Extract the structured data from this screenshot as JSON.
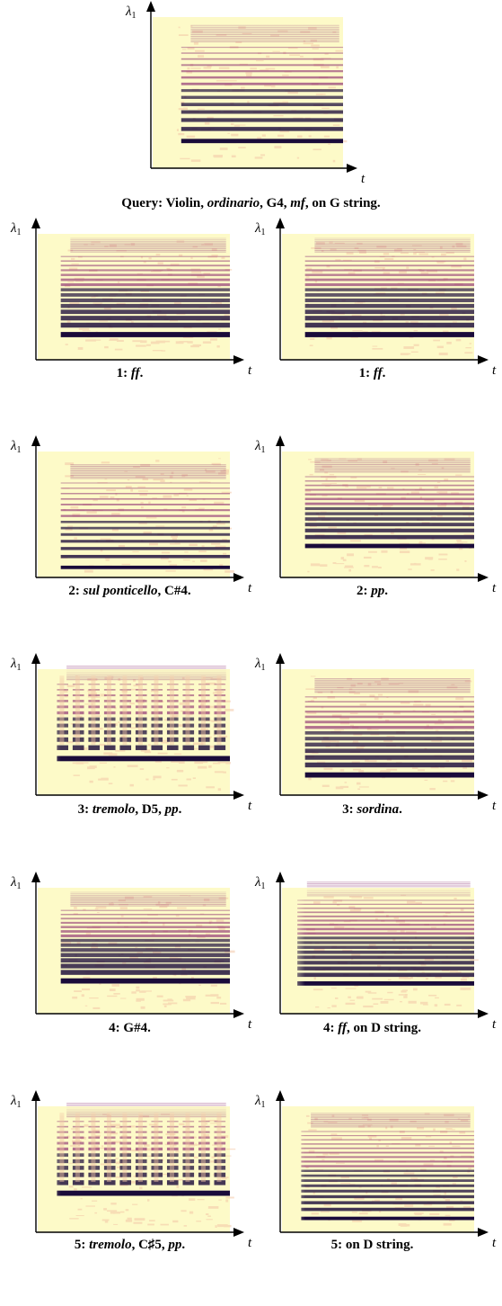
{
  "axes": {
    "y_label": "λ",
    "y_subscript": "1",
    "x_label": "t"
  },
  "colors": {
    "background": "#fdfac8",
    "dark": "#1a0b3a",
    "mid": "#8a2a6e",
    "light": "#f3c7a6"
  },
  "query": {
    "caption": {
      "prefix": "Query: Violin, ",
      "it1": "ordinario",
      "mid1": ", G4, ",
      "it2": "mf",
      "suffix": ", on G string."
    }
  },
  "results": [
    {
      "left": {
        "rank": "1: ",
        "parts": [
          {
            "t": "ff",
            "i": true
          },
          {
            "t": ".",
            "i": false
          }
        ]
      },
      "right": {
        "rank": "1: ",
        "parts": [
          {
            "t": "ff",
            "i": true
          },
          {
            "t": ".",
            "i": false
          }
        ]
      }
    },
    {
      "left": {
        "rank": "2: ",
        "parts": [
          {
            "t": "sul ponticello",
            "i": true
          },
          {
            "t": ", C#4.",
            "i": false
          }
        ]
      },
      "right": {
        "rank": "2: ",
        "parts": [
          {
            "t": "pp",
            "i": true
          },
          {
            "t": ".",
            "i": false
          }
        ]
      }
    },
    {
      "left": {
        "rank": "3: ",
        "parts": [
          {
            "t": "tremolo",
            "i": true
          },
          {
            "t": ", D5, ",
            "i": false
          },
          {
            "t": "pp",
            "i": true
          },
          {
            "t": ".",
            "i": false
          }
        ]
      },
      "right": {
        "rank": "3: ",
        "parts": [
          {
            "t": "sordina",
            "i": true
          },
          {
            "t": ".",
            "i": false
          }
        ]
      }
    },
    {
      "left": {
        "rank": "4: ",
        "parts": [
          {
            "t": "G#4.",
            "i": false
          }
        ]
      },
      "right": {
        "rank": "4: ",
        "parts": [
          {
            "t": "ff",
            "i": true
          },
          {
            "t": ", on D string.",
            "i": false
          }
        ]
      }
    },
    {
      "left": {
        "rank": "5: ",
        "parts": [
          {
            "t": "tremolo",
            "i": true
          },
          {
            "t": ", C♯5, ",
            "i": false
          },
          {
            "t": "pp",
            "i": true
          },
          {
            "t": ".",
            "i": false
          }
        ]
      },
      "right": {
        "rank": "5: ",
        "parts": [
          {
            "t": "on D string.",
            "i": false
          }
        ]
      }
    }
  ]
}
